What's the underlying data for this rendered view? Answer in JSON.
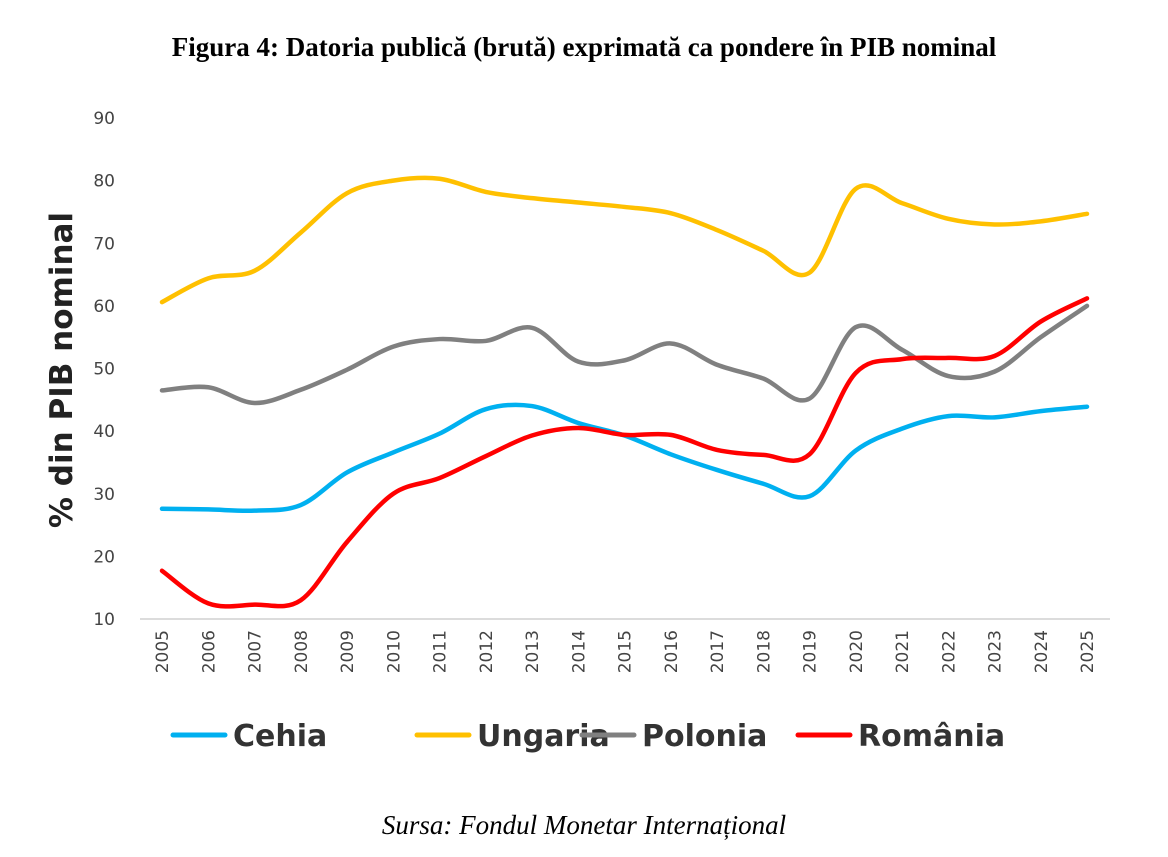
{
  "title": "Figura 4: Datoria publică (brută) exprimată ca pondere în PIB nominal",
  "source": "Sursa: Fondul Monetar Internațional",
  "chart_data": {
    "type": "line",
    "title": "Figura 4: Datoria publică (brută) exprimată ca pondere în PIB nominal",
    "xlabel": "",
    "ylabel": "% din PIB nominal",
    "ylim": [
      10,
      90
    ],
    "yticks": [
      10,
      20,
      30,
      40,
      50,
      60,
      70,
      80,
      90
    ],
    "grid": false,
    "legend": "bottom",
    "smooth": true,
    "x": [
      "2005",
      "2006",
      "2007",
      "2008",
      "2009",
      "2010",
      "2011",
      "2012",
      "2013",
      "2014",
      "2015",
      "2016",
      "2017",
      "2018",
      "2019",
      "2020",
      "2021",
      "2022",
      "2023",
      "2024",
      "2025"
    ],
    "series": [
      {
        "name": "Cehia",
        "color": "#00B0F0",
        "values": [
          27.6,
          27.5,
          27.3,
          28.2,
          33.4,
          36.6,
          39.6,
          43.5,
          44.0,
          41.3,
          39.3,
          36.3,
          33.8,
          31.6,
          29.6,
          36.9,
          40.4,
          42.4,
          42.2,
          43.2,
          43.9
        ]
      },
      {
        "name": "Ungaria",
        "color": "#FFC000",
        "values": [
          60.6,
          64.4,
          65.6,
          71.7,
          78.0,
          80.0,
          80.3,
          78.2,
          77.2,
          76.5,
          75.8,
          74.8,
          72.1,
          68.8,
          65.3,
          78.7,
          76.4,
          73.9,
          73.0,
          73.5,
          74.7
        ]
      },
      {
        "name": "Polonia",
        "color": "#808080",
        "values": [
          46.5,
          47.0,
          44.5,
          46.6,
          49.8,
          53.5,
          54.7,
          54.4,
          56.5,
          51.1,
          51.3,
          54.0,
          50.6,
          48.4,
          45.2,
          56.6,
          53.0,
          48.8,
          49.5,
          55.0,
          60.0
        ]
      },
      {
        "name": "România",
        "color": "#FF0000",
        "values": [
          17.7,
          12.5,
          12.3,
          13.0,
          22.3,
          30.0,
          32.5,
          36.0,
          39.3,
          40.5,
          39.4,
          39.4,
          37.0,
          36.2,
          36.3,
          49.3,
          51.5,
          51.7,
          52.0,
          57.5,
          61.2
        ]
      }
    ]
  }
}
